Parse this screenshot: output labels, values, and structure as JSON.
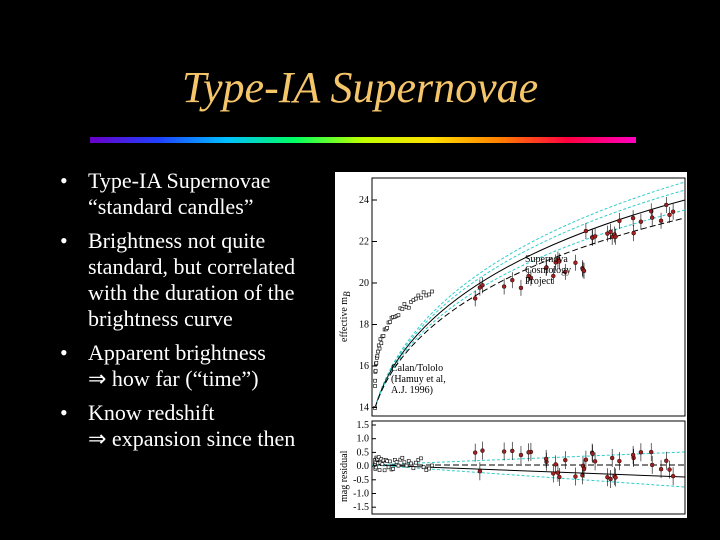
{
  "title": "Type-IA Supernovae",
  "bullets": [
    {
      "lines": [
        "Type-IA Supernovae",
        "“standard candles”"
      ]
    },
    {
      "lines": [
        "Brightness not quite",
        "standard, but correlated",
        "with the duration of the",
        "brightness curve"
      ]
    },
    {
      "lines": [
        "Apparent brightness",
        "⇒ how far (“time”)"
      ]
    },
    {
      "lines": [
        "Know redshift",
        "⇒ expansion since then"
      ]
    }
  ],
  "figure": {
    "y_label": "effective m",
    "y_label_sub": "B",
    "y_ticks": [
      "24",
      "22",
      "20",
      "18",
      "16",
      "14"
    ],
    "residual_label": "mag residual",
    "residual_ticks": [
      "1.5",
      "1.0",
      "0.5",
      "0.0",
      "-0.5",
      "-1.0",
      "-1.5"
    ],
    "scp_label": [
      "Supernova",
      "Cosmology",
      "Project"
    ],
    "calan_label": [
      "Calan/Tololo",
      "(Hamuy et al,",
      "A.J. 1996)"
    ]
  }
}
